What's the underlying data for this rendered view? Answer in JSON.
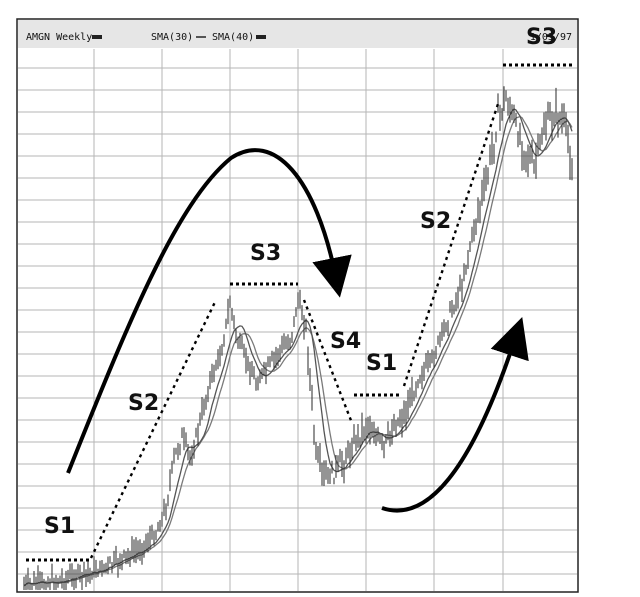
{
  "header": {
    "symbol_label": "AMGN Weekly",
    "sma1_label": "SMA(30)",
    "sma2_label": "SMA(40)",
    "date_label": "1/03/97"
  },
  "stage_labels": {
    "s1_left": "S1",
    "s2_left": "S2",
    "s3_top": "S3",
    "s4": "S4",
    "s1_mid": "S1",
    "s2_right": "S2",
    "s3_corner": "S3"
  },
  "colors": {
    "price": "#2a2a2a",
    "sma30": "#555555",
    "sma40": "#7a7a7a",
    "grid": "#b5b5b5",
    "header_bg": "#e6e6e6"
  },
  "chart_data": {
    "type": "line",
    "title": "AMGN Weekly",
    "xlabel": "",
    "ylabel": "",
    "grid": true,
    "series": [
      {
        "name": "AMGN Weekly",
        "style": "price-bars"
      },
      {
        "name": "SMA(30)",
        "style": "line"
      },
      {
        "name": "SMA(40)",
        "style": "line"
      }
    ],
    "annotations": [
      "S1",
      "S2",
      "S3",
      "S4",
      "S1",
      "S2",
      "S3"
    ]
  }
}
